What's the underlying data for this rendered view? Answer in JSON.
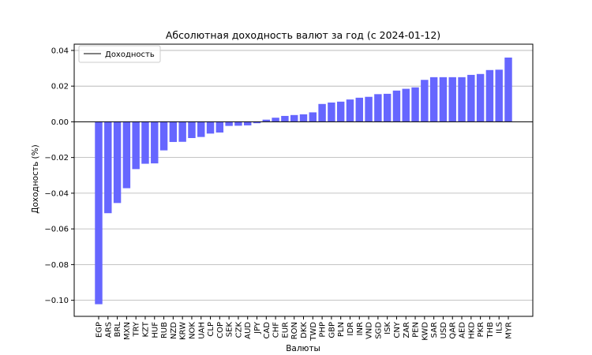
{
  "chart_data": {
    "type": "bar",
    "title": "Абсолютная доходность валют за год (с 2024-01-12)",
    "xlabel": "Валюты",
    "ylabel": "Доходность (%)",
    "ylim": [
      -0.109,
      0.0435
    ],
    "yticks": [
      0.04,
      0.02,
      0.0,
      -0.02,
      -0.04,
      -0.06,
      -0.08,
      -0.1
    ],
    "ytick_labels": [
      "0.04",
      "0.02",
      "0.00",
      "−0.02",
      "−0.04",
      "−0.06",
      "−0.08",
      "−0.10"
    ],
    "grid": "y",
    "legend": {
      "placement": "top-left",
      "entries": [
        "Доходность"
      ]
    },
    "bar_color": "#6666ff",
    "zero_line_color": "#000000",
    "categories": [
      "EGP",
      "ARS",
      "BRL",
      "MXN",
      "TRY",
      "KZT",
      "HUF",
      "RUB",
      "NZD",
      "KRW",
      "NOK",
      "UAH",
      "CLP",
      "COP",
      "SEK",
      "CZK",
      "AUD",
      "JPY",
      "CAD",
      "CHF",
      "EUR",
      "RON",
      "DKK",
      "TWD",
      "PHP",
      "GBP",
      "PLN",
      "IDR",
      "INR",
      "VND",
      "SGD",
      "ISK",
      "CNY",
      "ZAR",
      "PEN",
      "KWD",
      "SAR",
      "USD",
      "QAR",
      "AED",
      "HKD",
      "PKR",
      "THB",
      "ILS",
      "MYR"
    ],
    "values": [
      -0.1022,
      -0.0512,
      -0.0455,
      -0.0372,
      -0.0265,
      -0.0235,
      -0.0233,
      -0.016,
      -0.0113,
      -0.0112,
      -0.0091,
      -0.0085,
      -0.0066,
      -0.006,
      -0.0023,
      -0.0022,
      -0.002,
      -0.0008,
      0.0012,
      0.0023,
      0.0033,
      0.0038,
      0.0042,
      0.0053,
      0.01,
      0.0108,
      0.0113,
      0.0125,
      0.0135,
      0.014,
      0.0155,
      0.0157,
      0.0175,
      0.0185,
      0.0193,
      0.0235,
      0.025,
      0.025,
      0.025,
      0.025,
      0.0263,
      0.0268,
      0.029,
      0.0292,
      0.036
    ]
  }
}
